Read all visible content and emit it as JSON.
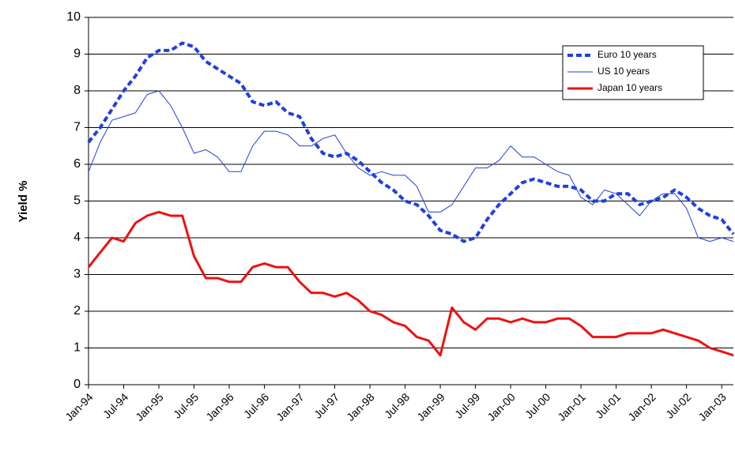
{
  "chart_data": {
    "type": "line",
    "y_label": "Yield %",
    "categories": [
      "Jan-94",
      null,
      null,
      "Jul-94",
      null,
      null,
      "Jan-95",
      null,
      null,
      "Jul-95",
      null,
      null,
      "Jan-96",
      null,
      null,
      "Jul-96",
      null,
      null,
      "Jan-97",
      null,
      null,
      "Jul-97",
      null,
      null,
      "Jan-98",
      null,
      null,
      "Jul-98",
      null,
      null,
      "Jan-99",
      null,
      null,
      "Jul-99",
      null,
      null,
      "Jan-00",
      null,
      null,
      "Jul-00",
      null,
      null,
      "Jan-01",
      null,
      null,
      "Jul-01",
      null,
      null,
      "Jan-02",
      null,
      null,
      "Jul-02",
      null,
      null,
      "Jan-03",
      null
    ],
    "series": [
      {
        "name": "Euro 10 years",
        "color": "#1f3fe0",
        "style": "dashed",
        "values": [
          6.6,
          7.0,
          7.5,
          8.0,
          8.4,
          8.9,
          9.1,
          9.1,
          9.3,
          9.2,
          8.8,
          8.6,
          8.4,
          8.2,
          7.7,
          7.6,
          7.7,
          7.4,
          7.3,
          6.7,
          6.3,
          6.2,
          6.3,
          6.1,
          5.8,
          5.5,
          5.3,
          5.0,
          4.9,
          4.6,
          4.2,
          4.1,
          3.9,
          4.0,
          4.5,
          4.9,
          5.2,
          5.5,
          5.6,
          5.5,
          5.4,
          5.4,
          5.3,
          5.0,
          5.0,
          5.2,
          5.2,
          4.9,
          5.0,
          5.1,
          5.3,
          5.1,
          4.8,
          4.6,
          4.5,
          4.1
        ]
      },
      {
        "name": "US 10 years",
        "color": "#1f3fe0",
        "style": "thin",
        "values": [
          5.8,
          6.6,
          7.2,
          7.3,
          7.4,
          7.9,
          8.0,
          7.6,
          7.0,
          6.3,
          6.4,
          6.2,
          5.8,
          5.8,
          6.5,
          6.9,
          6.9,
          6.8,
          6.5,
          6.5,
          6.7,
          6.8,
          6.3,
          5.9,
          5.7,
          5.8,
          5.7,
          5.7,
          5.4,
          4.7,
          4.7,
          4.9,
          5.4,
          5.9,
          5.9,
          6.1,
          6.5,
          6.2,
          6.2,
          6.0,
          5.8,
          5.7,
          5.1,
          4.9,
          5.3,
          5.2,
          4.9,
          4.6,
          5.0,
          5.2,
          5.2,
          4.8,
          4.0,
          3.9,
          4.0,
          3.9
        ]
      },
      {
        "name": "Japan 10 years",
        "color": "#ee1111",
        "style": "thick",
        "values": [
          3.2,
          3.6,
          4.0,
          3.9,
          4.4,
          4.6,
          4.7,
          4.6,
          4.6,
          3.5,
          2.9,
          2.9,
          2.8,
          2.8,
          3.2,
          3.3,
          3.2,
          3.2,
          2.8,
          2.5,
          2.5,
          2.4,
          2.5,
          2.3,
          2.0,
          1.9,
          1.7,
          1.6,
          1.3,
          1.2,
          0.8,
          2.1,
          1.7,
          1.5,
          1.8,
          1.8,
          1.7,
          1.8,
          1.7,
          1.7,
          1.8,
          1.8,
          1.6,
          1.3,
          1.3,
          1.3,
          1.4,
          1.4,
          1.4,
          1.5,
          1.4,
          1.3,
          1.2,
          1.0,
          0.9,
          0.8
        ]
      }
    ],
    "ylim": [
      0,
      10
    ],
    "yticks": [
      0,
      1,
      2,
      3,
      4,
      5,
      6,
      7,
      8,
      9,
      10
    ],
    "grid": true,
    "legend": "upper right"
  }
}
